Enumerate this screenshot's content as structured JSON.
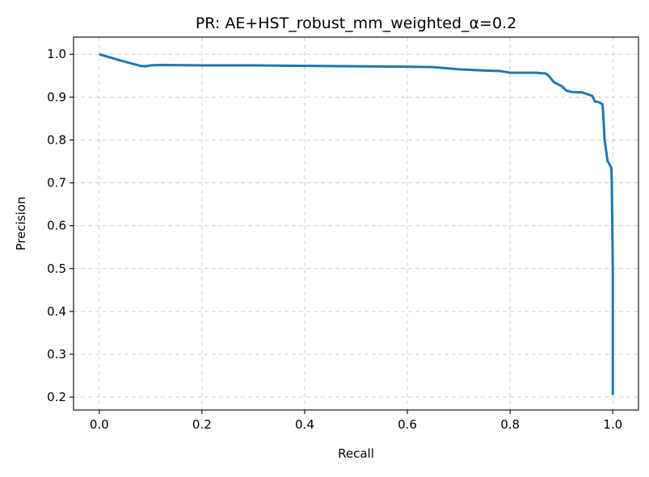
{
  "chart_data": {
    "type": "line",
    "title": "PR: AE+HST_robust_mm_weighted_α=0.2",
    "xlabel": "Recall",
    "ylabel": "Precision",
    "xlim": [
      -0.05,
      1.05
    ],
    "ylim": [
      0.17,
      1.04
    ],
    "xticks": [
      0.0,
      0.2,
      0.4,
      0.6,
      0.8,
      1.0
    ],
    "xtick_labels": [
      "0.0",
      "0.2",
      "0.4",
      "0.6",
      "0.8",
      "1.0"
    ],
    "yticks": [
      0.2,
      0.3,
      0.4,
      0.5,
      0.6,
      0.7,
      0.8,
      0.9,
      1.0
    ],
    "ytick_labels": [
      "0.2",
      "0.3",
      "0.4",
      "0.5",
      "0.6",
      "0.7",
      "0.8",
      "0.9",
      "1.0"
    ],
    "grid": true,
    "series": [
      {
        "color": "#1f77b4",
        "x": [
          0.0,
          0.04,
          0.08,
          0.09,
          0.1,
          0.12,
          0.2,
          0.3,
          0.4,
          0.5,
          0.6,
          0.65,
          0.7,
          0.75,
          0.78,
          0.8,
          0.85,
          0.87,
          0.875,
          0.88,
          0.885,
          0.89,
          0.9,
          0.91,
          0.92,
          0.94,
          0.945,
          0.95,
          0.955,
          0.96,
          0.965,
          0.97,
          0.975,
          0.98,
          0.982,
          0.984,
          0.987,
          0.99,
          0.993,
          0.995,
          0.997,
          0.998,
          0.999,
          1.0,
          1.0,
          1.0
        ],
        "y": [
          1.0,
          0.986,
          0.973,
          0.972,
          0.974,
          0.975,
          0.974,
          0.974,
          0.973,
          0.972,
          0.971,
          0.97,
          0.965,
          0.962,
          0.961,
          0.957,
          0.957,
          0.955,
          0.95,
          0.943,
          0.935,
          0.932,
          0.926,
          0.915,
          0.912,
          0.911,
          0.909,
          0.907,
          0.905,
          0.903,
          0.89,
          0.889,
          0.887,
          0.883,
          0.845,
          0.8,
          0.775,
          0.75,
          0.745,
          0.74,
          0.735,
          0.7,
          0.6,
          0.5,
          0.35,
          0.205
        ]
      }
    ]
  }
}
